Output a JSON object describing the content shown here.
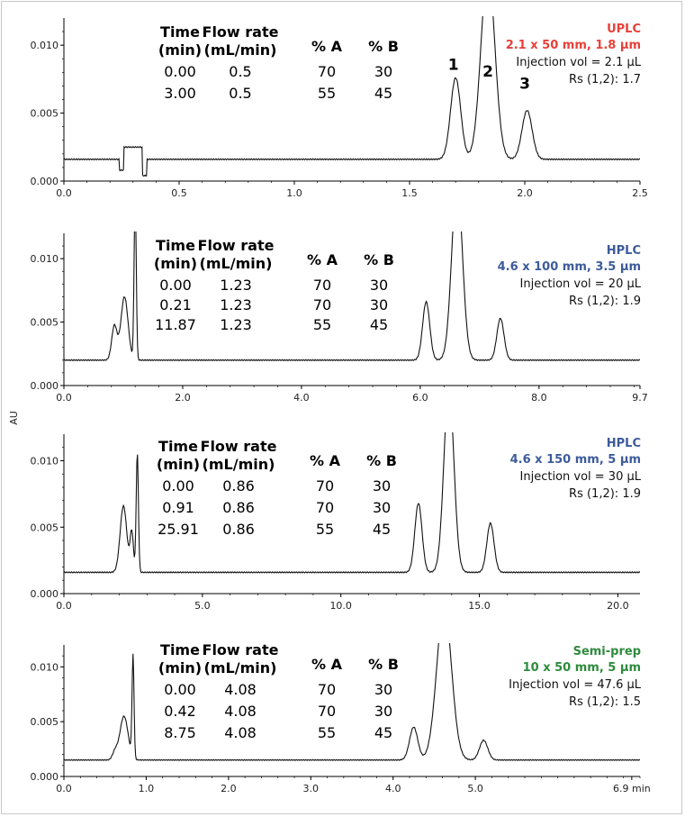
{
  "y_axis_label": "AU",
  "chart_data": [
    {
      "type": "line",
      "title": "",
      "xlabel": "",
      "ylabel": "AU",
      "xlim": [
        0,
        2.5
      ],
      "ylim": [
        0,
        0.012
      ],
      "x_ticks": [
        "0.0",
        "0.5",
        "1.0",
        "1.5",
        "2.0",
        "2.5"
      ],
      "y_ticks": [
        "0.000",
        "0.005",
        "0.010"
      ],
      "column_mode": "UPLC",
      "column_dims": "2.1 x 50 mm, 1.8 µm",
      "injection": "Injection vol = 2.1 µL",
      "resolution": "Rs (1,2): 1.7",
      "mode_color": "#e8403a",
      "baseline": 0.0016,
      "solvent_region": [
        0.24,
        0.36
      ],
      "peak_labels": [
        {
          "label": "1",
          "x": 1.69,
          "y": 0.0082
        },
        {
          "label": "2",
          "x": 1.84,
          "y": 0.0077
        },
        {
          "label": "3",
          "x": 2.0,
          "y": 0.0068
        }
      ],
      "peaks": [
        {
          "x": 1.7,
          "height": 0.006,
          "width": 0.022
        },
        {
          "x": 1.84,
          "height": 0.014,
          "width": 0.03
        },
        {
          "x": 2.01,
          "height": 0.0036,
          "width": 0.022
        }
      ],
      "gradient": {
        "headers": [
          [
            "Time",
            "(min)"
          ],
          [
            "Flow rate",
            "(mL/min)"
          ],
          [
            "% A",
            ""
          ],
          [
            "% B",
            ""
          ]
        ],
        "rows": [
          [
            "0.00",
            "0.5",
            "70",
            "30"
          ],
          [
            "3.00",
            "0.5",
            "55",
            "45"
          ]
        ]
      }
    },
    {
      "type": "line",
      "title": "",
      "xlabel": "",
      "ylabel": "AU",
      "xlim": [
        0,
        9.7
      ],
      "ylim": [
        0,
        0.012
      ],
      "x_ticks": [
        "0.0",
        "2.0",
        "4.0",
        "6.0",
        "8.0",
        "9.7"
      ],
      "y_ticks": [
        "0.000",
        "0.005",
        "0.010"
      ],
      "column_mode": "HPLC",
      "column_dims": "4.6 x 100 mm, 3.5 µm",
      "injection": "Injection vol = 20 µL",
      "resolution": "Rs (1,2): 1.9",
      "mode_color": "#3d5b9a",
      "baseline": 0.002,
      "solvent_peaks": [
        {
          "x": 0.85,
          "height": 0.0027,
          "width": 0.045
        },
        {
          "x": 1.02,
          "height": 0.005,
          "width": 0.06
        },
        {
          "x": 1.2,
          "height": 0.013,
          "width": 0.018
        }
      ],
      "peaks": [
        {
          "x": 6.1,
          "height": 0.0046,
          "width": 0.06
        },
        {
          "x": 6.62,
          "height": 0.014,
          "width": 0.09
        },
        {
          "x": 7.35,
          "height": 0.0033,
          "width": 0.06
        }
      ],
      "gradient": {
        "headers": [
          [
            "Time",
            "(min)"
          ],
          [
            "Flow rate",
            "(mL/min)"
          ],
          [
            "% A",
            ""
          ],
          [
            "% B",
            ""
          ]
        ],
        "rows": [
          [
            "0.00",
            "1.23",
            "70",
            "30"
          ],
          [
            "0.21",
            "1.23",
            "70",
            "30"
          ],
          [
            "11.87",
            "1.23",
            "55",
            "45"
          ]
        ]
      }
    },
    {
      "type": "line",
      "title": "",
      "xlabel": "",
      "ylabel": "AU",
      "xlim": [
        0,
        20.8
      ],
      "ylim": [
        0,
        0.012
      ],
      "x_ticks": [
        "0.0",
        "5.0",
        "10.0",
        "15.0",
        "20.0"
      ],
      "y_ticks": [
        "0.000",
        "0.005",
        "0.010"
      ],
      "column_mode": "HPLC",
      "column_dims": "4.6 x 150 mm, 5 µm",
      "injection": "Injection vol = 30 µL",
      "resolution": "Rs (1,2): 1.9",
      "mode_color": "#3d5b9a",
      "baseline": 0.0016,
      "solvent_peaks": [
        {
          "x": 2.15,
          "height": 0.005,
          "width": 0.12
        },
        {
          "x": 2.45,
          "height": 0.003,
          "width": 0.06
        },
        {
          "x": 2.65,
          "height": 0.009,
          "width": 0.04
        }
      ],
      "peaks": [
        {
          "x": 12.8,
          "height": 0.0052,
          "width": 0.13
        },
        {
          "x": 13.9,
          "height": 0.014,
          "width": 0.18
        },
        {
          "x": 15.4,
          "height": 0.0037,
          "width": 0.13
        }
      ],
      "gradient": {
        "headers": [
          [
            "Time",
            "(min)"
          ],
          [
            "Flow rate",
            "(mL/min)"
          ],
          [
            "% A",
            ""
          ],
          [
            "% B",
            ""
          ]
        ],
        "rows": [
          [
            "0.00",
            "0.86",
            "70",
            "30"
          ],
          [
            "0.91",
            "0.86",
            "70",
            "30"
          ],
          [
            "25.91",
            "0.86",
            "55",
            "45"
          ]
        ]
      }
    },
    {
      "type": "line",
      "title": "",
      "xlabel": "",
      "ylabel": "AU",
      "xlim": [
        0,
        7.0
      ],
      "ylim": [
        0,
        0.012
      ],
      "x_ticks": [
        "0.0",
        "1.0",
        "2.0",
        "3.0",
        "4.0",
        "5.0",
        "6.9 min"
      ],
      "x_tick_values": [
        0,
        1,
        2,
        3,
        4,
        5,
        6.9
      ],
      "y_ticks": [
        "0.000",
        "0.005",
        "0.010"
      ],
      "column_mode": "Semi-prep",
      "column_dims": "10 x 50 mm, 5 µm",
      "injection": "Injection vol = 47.6 µL",
      "resolution": "Rs (1,2): 1.5",
      "mode_color": "#2e8b3d",
      "baseline": 0.0015,
      "solvent_peaks": [
        {
          "x": 0.62,
          "height": 0.0007,
          "width": 0.03
        },
        {
          "x": 0.73,
          "height": 0.004,
          "width": 0.05
        },
        {
          "x": 0.84,
          "height": 0.0093,
          "width": 0.012
        }
      ],
      "peaks": [
        {
          "x": 4.25,
          "height": 0.003,
          "width": 0.05
        },
        {
          "x": 4.62,
          "height": 0.014,
          "width": 0.09
        },
        {
          "x": 5.1,
          "height": 0.0018,
          "width": 0.05
        }
      ],
      "gradient": {
        "headers": [
          [
            "Time",
            "(min)"
          ],
          [
            "Flow rate",
            "(mL/min)"
          ],
          [
            "% A",
            ""
          ],
          [
            "% B",
            ""
          ]
        ],
        "rows": [
          [
            "0.00",
            "4.08",
            "70",
            "30"
          ],
          [
            "0.42",
            "4.08",
            "70",
            "30"
          ],
          [
            "8.75",
            "4.08",
            "55",
            "45"
          ]
        ]
      }
    }
  ]
}
